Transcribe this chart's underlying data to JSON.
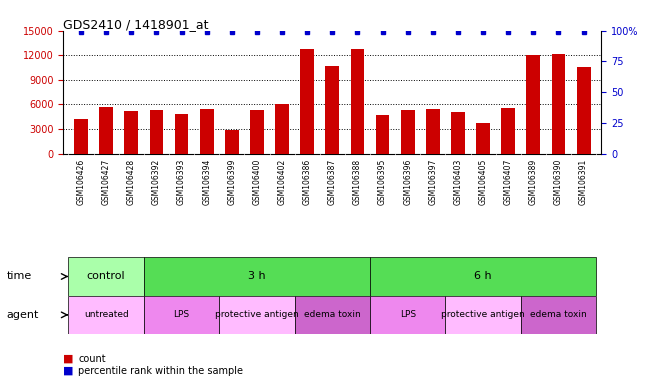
{
  "title": "GDS2410 / 1418901_at",
  "samples": [
    "GSM106426",
    "GSM106427",
    "GSM106428",
    "GSM106392",
    "GSM106393",
    "GSM106394",
    "GSM106399",
    "GSM106400",
    "GSM106402",
    "GSM106386",
    "GSM106387",
    "GSM106388",
    "GSM106395",
    "GSM106396",
    "GSM106397",
    "GSM106403",
    "GSM106405",
    "GSM106407",
    "GSM106389",
    "GSM106390",
    "GSM106391"
  ],
  "counts": [
    4200,
    5700,
    5200,
    5300,
    4800,
    5500,
    2900,
    5300,
    6000,
    12800,
    10700,
    12800,
    4700,
    5300,
    5500,
    5100,
    3700,
    5600,
    12000,
    12200,
    10600
  ],
  "percentile": [
    99,
    99,
    99,
    99,
    99,
    99,
    99,
    99,
    99,
    99,
    99,
    99,
    99,
    99,
    99,
    99,
    99,
    99,
    99,
    99,
    99
  ],
  "ylim_left": [
    0,
    15000
  ],
  "ylim_right": [
    0,
    100
  ],
  "yticks_left": [
    0,
    3000,
    6000,
    9000,
    12000,
    15000
  ],
  "yticks_right": [
    0,
    25,
    50,
    75,
    100
  ],
  "bar_color": "#cc0000",
  "dot_color": "#0000cc",
  "time_groups": [
    {
      "label": "control",
      "start": 0,
      "end": 3,
      "color": "#aaffaa"
    },
    {
      "label": "3 h",
      "start": 3,
      "end": 12,
      "color": "#55dd55"
    },
    {
      "label": "6 h",
      "start": 12,
      "end": 21,
      "color": "#55dd55"
    }
  ],
  "agent_groups": [
    {
      "label": "untreated",
      "start": 0,
      "end": 3,
      "color": "#ffbbff"
    },
    {
      "label": "LPS",
      "start": 3,
      "end": 6,
      "color": "#ee88ee"
    },
    {
      "label": "protective antigen",
      "start": 6,
      "end": 9,
      "color": "#ffbbff"
    },
    {
      "label": "edema toxin",
      "start": 9,
      "end": 12,
      "color": "#cc66cc"
    },
    {
      "label": "LPS",
      "start": 12,
      "end": 15,
      "color": "#ee88ee"
    },
    {
      "label": "protective antigen",
      "start": 15,
      "end": 18,
      "color": "#ffbbff"
    },
    {
      "label": "edema toxin",
      "start": 18,
      "end": 21,
      "color": "#cc66cc"
    }
  ],
  "legend_count_label": "count",
  "legend_pct_label": "percentile rank within the sample",
  "time_label": "time",
  "agent_label": "agent",
  "tick_label_color_left": "#cc0000",
  "tick_label_color_right": "#0000cc",
  "bg_color": "#ffffff",
  "sample_bg": "#dddddd"
}
